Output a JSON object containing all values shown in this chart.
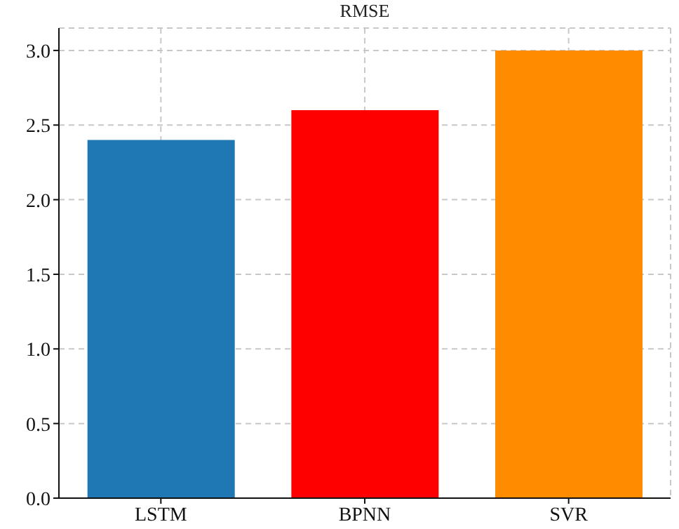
{
  "chart_data": {
    "type": "bar",
    "title": "RMSE",
    "categories": [
      "LSTM",
      "BPNN",
      "SVR"
    ],
    "values": [
      2.4,
      2.6,
      3.0
    ],
    "colors": [
      "#1f77b4",
      "#ff0000",
      "#ff8c00"
    ],
    "ylim": [
      0,
      3.15
    ],
    "yticks": [
      {
        "value": 0,
        "label": "0.0"
      },
      {
        "value": 0.5,
        "label": "0.5"
      },
      {
        "value": 1,
        "label": "1.0"
      },
      {
        "value": 1.5,
        "label": "1.5"
      },
      {
        "value": 2,
        "label": "2.0"
      },
      {
        "value": 2.5,
        "label": "2.5"
      },
      {
        "value": 3,
        "label": "3.0"
      }
    ],
    "grid": true
  }
}
